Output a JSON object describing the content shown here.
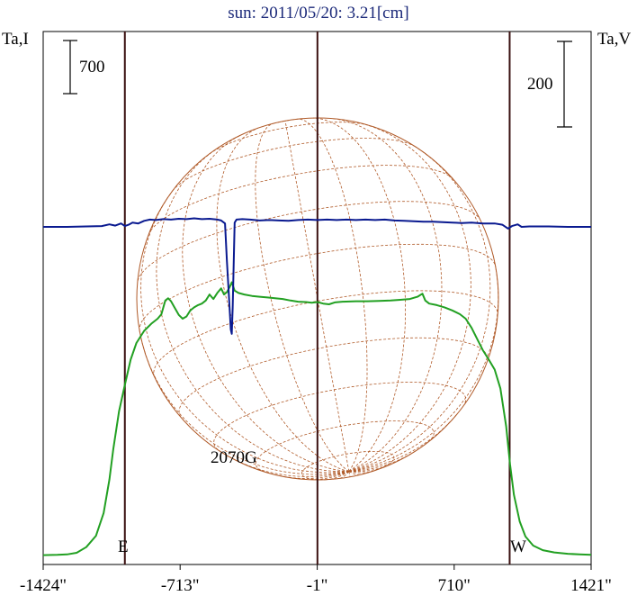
{
  "colors": {
    "title": "#1c2a7a",
    "frame": "#000000",
    "limb_lines": "#3a1010",
    "intensity": "#22a022",
    "polarization": "#0a1a90",
    "sun_disk": "#b05a28"
  },
  "chart_data": {
    "type": "line",
    "title": "sun: 2011/05/20: 3.21[cm]",
    "xlabel": "",
    "ylabel_left": "Ta,I",
    "ylabel_right": "Ta,V",
    "x_unit": "arcsec",
    "xlim": [
      -1424,
      1421
    ],
    "x_ticks": [
      -1424,
      -713,
      -1,
      710,
      1421
    ],
    "x_tick_labels": [
      "-1424\"",
      "-713\"",
      "-1\"",
      "710\"",
      "1421\""
    ],
    "left_scale_bar": "700",
    "right_scale_bar": "200",
    "limb_markers": [
      {
        "label": "E",
        "x": -1000
      },
      {
        "label": "W",
        "x": 998
      }
    ],
    "center_marker_x": 0,
    "annotation": {
      "text": "2070G",
      "x": -440
    },
    "series": [
      {
        "role": "intensity",
        "axis": "left",
        "points": [
          [
            -1424,
            5
          ],
          [
            -1350,
            8
          ],
          [
            -1300,
            14
          ],
          [
            -1250,
            35
          ],
          [
            -1200,
            110
          ],
          [
            -1150,
            260
          ],
          [
            -1110,
            560
          ],
          [
            -1080,
            1000
          ],
          [
            -1060,
            1400
          ],
          [
            -1030,
            1900
          ],
          [
            -1000,
            2250
          ],
          [
            -970,
            2580
          ],
          [
            -940,
            2800
          ],
          [
            -900,
            2960
          ],
          [
            -860,
            3060
          ],
          [
            -830,
            3120
          ],
          [
            -810,
            3180
          ],
          [
            -790,
            3360
          ],
          [
            -775,
            3390
          ],
          [
            -760,
            3350
          ],
          [
            -740,
            3260
          ],
          [
            -720,
            3170
          ],
          [
            -700,
            3120
          ],
          [
            -680,
            3150
          ],
          [
            -660,
            3230
          ],
          [
            -640,
            3270
          ],
          [
            -620,
            3300
          ],
          [
            -600,
            3320
          ],
          [
            -580,
            3360
          ],
          [
            -560,
            3440
          ],
          [
            -540,
            3380
          ],
          [
            -520,
            3460
          ],
          [
            -500,
            3520
          ],
          [
            -485,
            3440
          ],
          [
            -470,
            3470
          ],
          [
            -455,
            3540
          ],
          [
            -445,
            3600
          ],
          [
            -430,
            3490
          ],
          [
            -410,
            3460
          ],
          [
            -380,
            3440
          ],
          [
            -340,
            3420
          ],
          [
            -300,
            3410
          ],
          [
            -260,
            3400
          ],
          [
            -220,
            3390
          ],
          [
            -180,
            3380
          ],
          [
            -140,
            3360
          ],
          [
            -100,
            3345
          ],
          [
            -60,
            3340
          ],
          [
            -30,
            3330
          ],
          [
            0,
            3340
          ],
          [
            30,
            3320
          ],
          [
            60,
            3310
          ],
          [
            90,
            3335
          ],
          [
            130,
            3345
          ],
          [
            200,
            3350
          ],
          [
            260,
            3350
          ],
          [
            320,
            3355
          ],
          [
            380,
            3360
          ],
          [
            430,
            3370
          ],
          [
            480,
            3380
          ],
          [
            520,
            3410
          ],
          [
            545,
            3450
          ],
          [
            560,
            3360
          ],
          [
            580,
            3320
          ],
          [
            620,
            3300
          ],
          [
            660,
            3270
          ],
          [
            700,
            3230
          ],
          [
            740,
            3180
          ],
          [
            770,
            3120
          ],
          [
            800,
            3000
          ],
          [
            830,
            2850
          ],
          [
            860,
            2700
          ],
          [
            890,
            2580
          ],
          [
            920,
            2450
          ],
          [
            950,
            2200
          ],
          [
            980,
            1700
          ],
          [
            1000,
            1200
          ],
          [
            1020,
            800
          ],
          [
            1050,
            450
          ],
          [
            1080,
            250
          ],
          [
            1120,
            130
          ],
          [
            1170,
            70
          ],
          [
            1230,
            40
          ],
          [
            1300,
            22
          ],
          [
            1360,
            14
          ],
          [
            1421,
            8
          ]
        ]
      },
      {
        "role": "polarization",
        "axis": "right",
        "points": [
          [
            -1424,
            0
          ],
          [
            -1300,
            0
          ],
          [
            -1200,
            1
          ],
          [
            -1120,
            2
          ],
          [
            -1080,
            6
          ],
          [
            -1050,
            3
          ],
          [
            -1020,
            8
          ],
          [
            -1000,
            2
          ],
          [
            -980,
            5
          ],
          [
            -960,
            10
          ],
          [
            -930,
            8
          ],
          [
            -900,
            14
          ],
          [
            -870,
            17
          ],
          [
            -840,
            16
          ],
          [
            -800,
            18
          ],
          [
            -760,
            17
          ],
          [
            -720,
            19
          ],
          [
            -680,
            18
          ],
          [
            -640,
            20
          ],
          [
            -600,
            18
          ],
          [
            -560,
            19
          ],
          [
            -520,
            17
          ],
          [
            -500,
            15
          ],
          [
            -480,
            8
          ],
          [
            -470,
            -80
          ],
          [
            -460,
            -160
          ],
          [
            -450,
            -240
          ],
          [
            -445,
            -250
          ],
          [
            -440,
            -190
          ],
          [
            -435,
            -90
          ],
          [
            -430,
            10
          ],
          [
            -420,
            17
          ],
          [
            -390,
            18
          ],
          [
            -350,
            17
          ],
          [
            -300,
            15
          ],
          [
            -250,
            16
          ],
          [
            -200,
            15
          ],
          [
            -150,
            14
          ],
          [
            -100,
            16
          ],
          [
            -50,
            17
          ],
          [
            0,
            16
          ],
          [
            50,
            17
          ],
          [
            100,
            16
          ],
          [
            150,
            17
          ],
          [
            200,
            16
          ],
          [
            250,
            17
          ],
          [
            300,
            16
          ],
          [
            350,
            17
          ],
          [
            400,
            15
          ],
          [
            450,
            14
          ],
          [
            500,
            13
          ],
          [
            550,
            12
          ],
          [
            600,
            12
          ],
          [
            650,
            11
          ],
          [
            700,
            10
          ],
          [
            750,
            9
          ],
          [
            800,
            10
          ],
          [
            860,
            8
          ],
          [
            920,
            8
          ],
          [
            960,
            5
          ],
          [
            990,
            -4
          ],
          [
            1010,
            2
          ],
          [
            1040,
            6
          ],
          [
            1060,
            0
          ],
          [
            1100,
            1
          ],
          [
            1200,
            1
          ],
          [
            1300,
            0
          ],
          [
            1421,
            0
          ]
        ]
      }
    ]
  }
}
